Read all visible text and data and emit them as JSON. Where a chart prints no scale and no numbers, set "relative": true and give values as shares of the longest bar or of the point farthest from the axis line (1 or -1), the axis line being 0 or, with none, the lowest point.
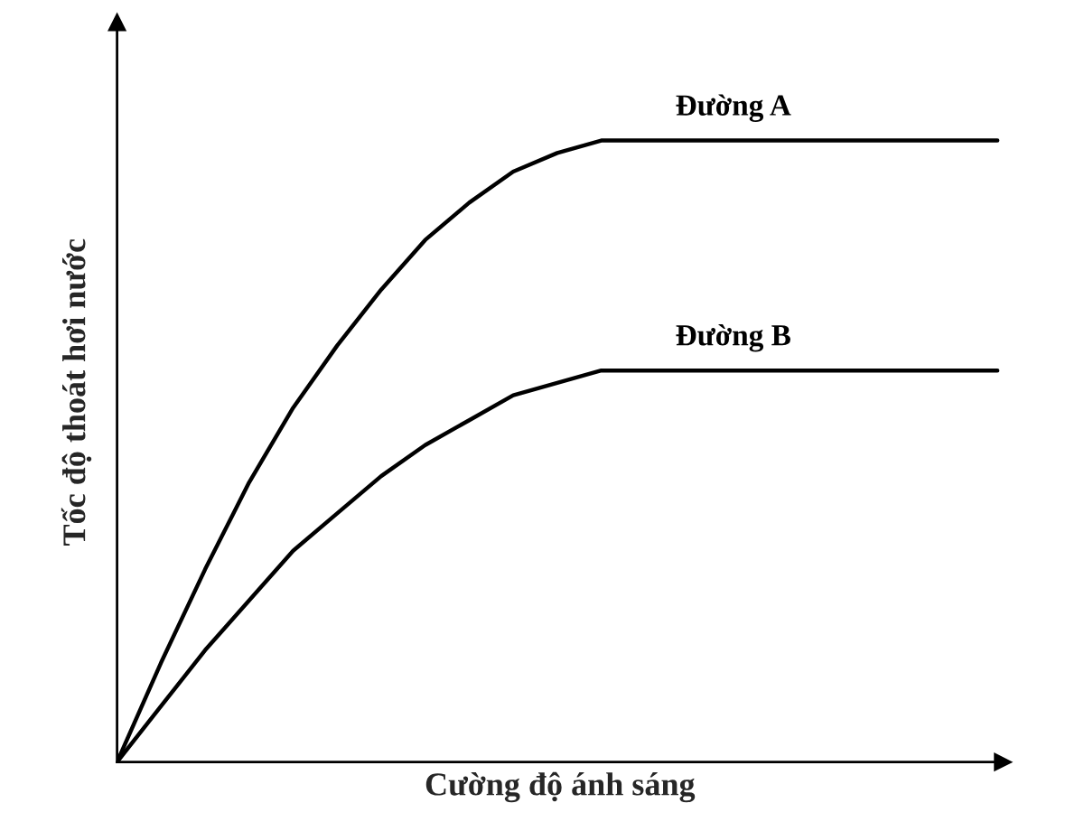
{
  "chart_data": {
    "type": "line",
    "relative": true,
    "xlabel": "Cường độ ánh sáng",
    "ylabel": "Tốc độ thoát hơi nước",
    "categories": [
      null,
      null,
      null,
      null,
      null,
      null,
      null,
      null,
      null,
      null,
      null,
      null,
      null,
      null,
      null,
      null,
      null,
      null,
      null,
      null,
      null
    ],
    "series": [
      {
        "name": "Đường A",
        "color": "#000000",
        "values": [
          0,
          0.16,
          0.31,
          0.45,
          0.57,
          0.67,
          0.76,
          0.84,
          0.9,
          0.95,
          0.98,
          1,
          1,
          1,
          1,
          1,
          1,
          1,
          1,
          1,
          1
        ]
      },
      {
        "name": "Đường B",
        "color": "#000000",
        "values": [
          0,
          0.09,
          0.18,
          0.26,
          0.34,
          0.4,
          0.46,
          0.51,
          0.55,
          0.59,
          0.61,
          0.63,
          0.63,
          0.63,
          0.63,
          0.63,
          0.63,
          0.63,
          0.63,
          0.63,
          0.63
        ]
      }
    ],
    "marker": "none",
    "line_style": "solid"
  }
}
